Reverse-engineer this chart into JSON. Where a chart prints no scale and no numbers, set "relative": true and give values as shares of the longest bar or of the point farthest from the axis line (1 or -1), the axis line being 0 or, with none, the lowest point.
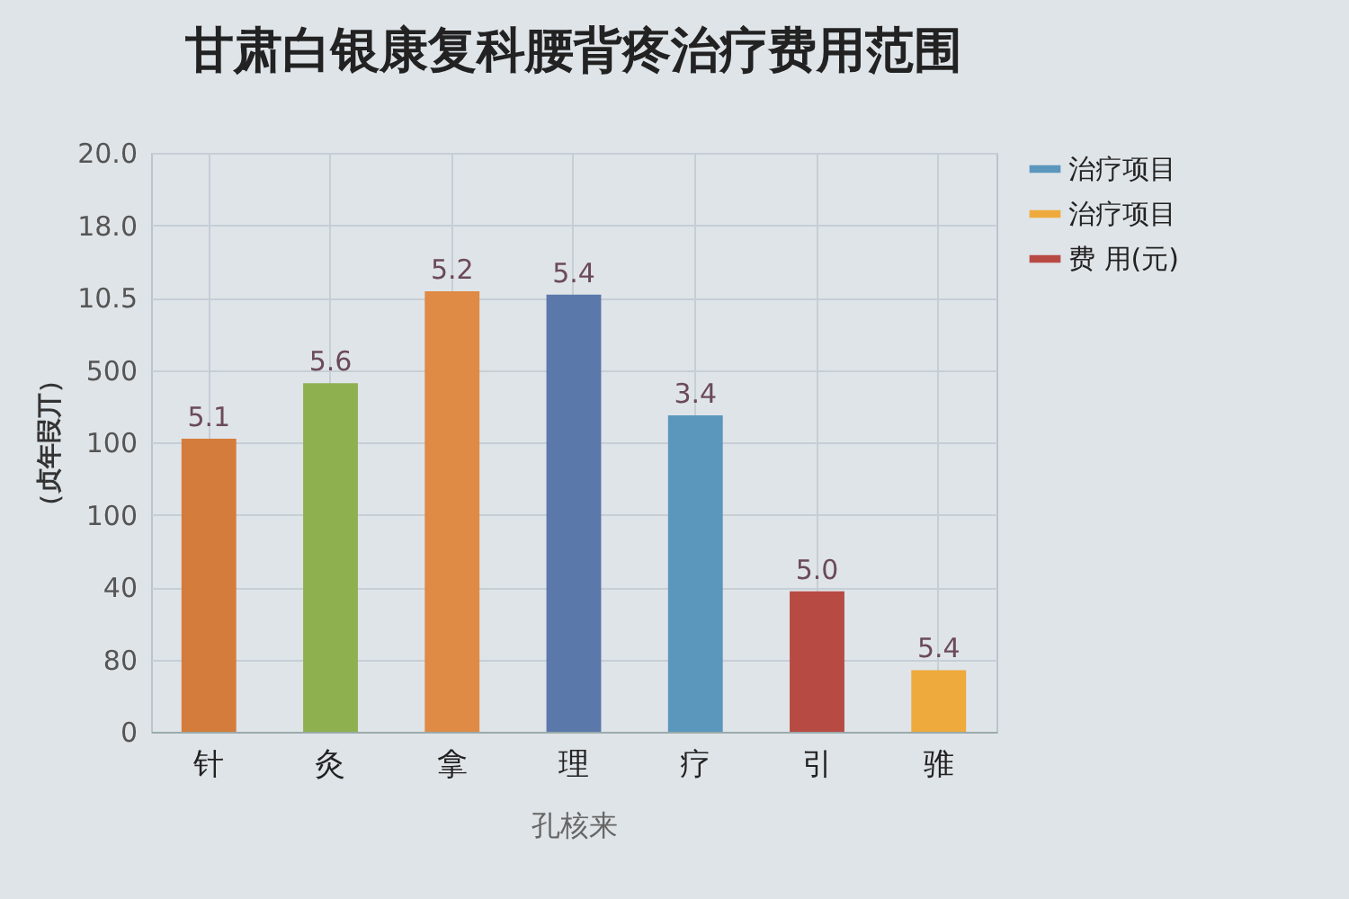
{
  "chart_data": {
    "type": "bar",
    "title": "甘肃白银康复科腰背疼治疗费用范围",
    "xlabel": "孔核来",
    "ylabel": "（贞年叚丌）",
    "categories": [
      "针",
      "灸",
      "拿",
      "理",
      "疗",
      "引",
      "骓"
    ],
    "relative": true,
    "grid": true,
    "legend": "right",
    "ylim": [
      0,
      1.314
    ],
    "annotations": [
      "0",
      "80",
      "40",
      "100",
      "100",
      "500",
      "10.5",
      "18.0",
      "20.0",
      {
        "text": "5.1",
        "x": "针",
        "y": 0.665
      },
      {
        "text": "5.6",
        "x": "灸",
        "y": 0.791
      },
      {
        "text": "5.2",
        "x": "拿",
        "y": 1
      },
      {
        "text": "5.4",
        "x": "理",
        "y": 0.992
      },
      {
        "text": "3.4",
        "x": "疗",
        "y": 0.718
      },
      {
        "text": "5.0",
        "x": "引",
        "y": 0.319
      },
      {
        "text": "5.4",
        "x": "骓",
        "y": 0.14
      }
    ],
    "series": [
      {
        "colors": [
          "#d47c3c",
          "#8fb04f",
          "#df8a45",
          "#5b78aa",
          null,
          null,
          null
        ],
        "values": [
          0.665,
          0.791,
          1,
          0.992,
          null,
          null,
          null
        ]
      },
      {
        "name": "治疗项目",
        "color": "#5b97bd",
        "values": [
          null,
          null,
          null,
          null,
          0.718,
          null,
          null
        ]
      },
      {
        "name": "治疗项目",
        "color": "#eeaa3c",
        "values": [
          null,
          null,
          null,
          null,
          null,
          null,
          0.14
        ]
      },
      {
        "name": "费 用(元)",
        "color": "#b84a44",
        "values": [
          null,
          null,
          null,
          null,
          null,
          0.319,
          null
        ]
      }
    ]
  }
}
